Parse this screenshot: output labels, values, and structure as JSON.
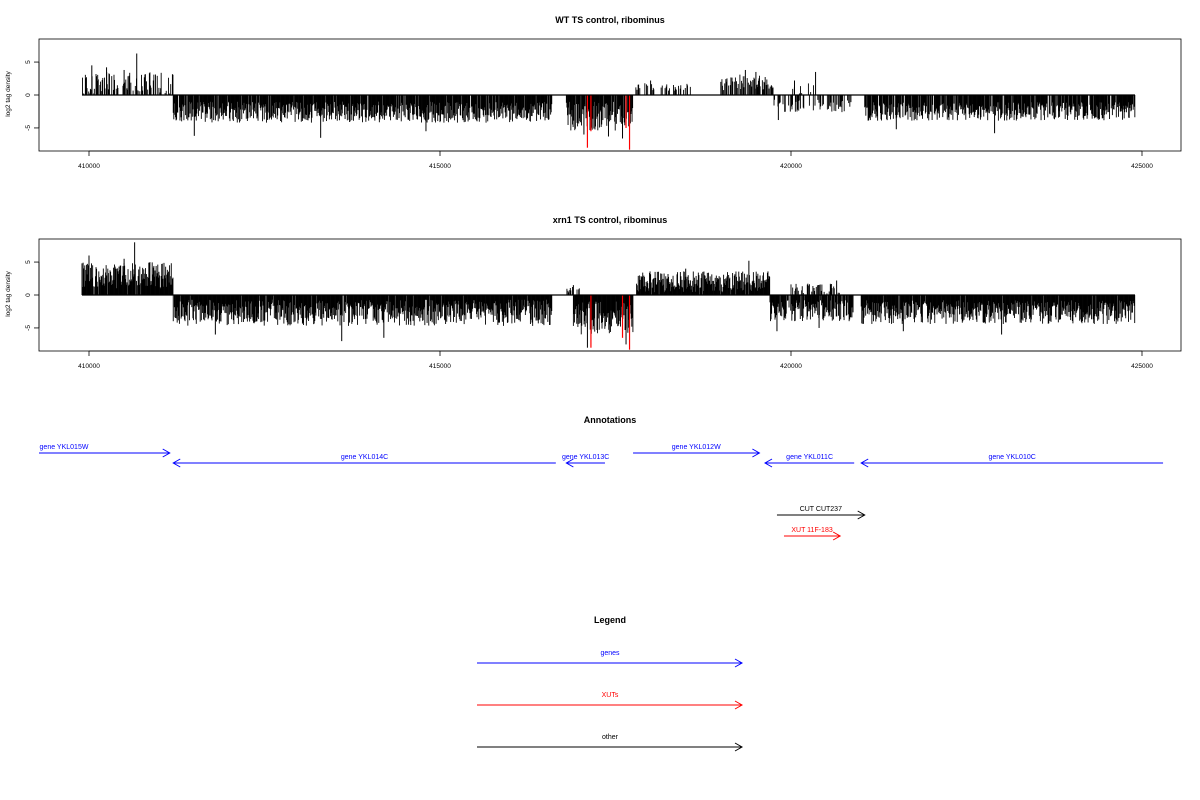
{
  "chart_data": [
    {
      "type": "bar",
      "title": "WT TS control, ribominus",
      "ylabel": "log2 tag density",
      "xlabel": "",
      "xlim": [
        409900,
        424900
      ],
      "ylim": [
        -8.5,
        8.5
      ],
      "x_ticks": [
        410000,
        415000,
        420000,
        425000
      ],
      "y_ticks": [
        5,
        0,
        -5
      ],
      "grid": false,
      "regions": [
        {
          "start": 409900,
          "end": 411200,
          "sign": 1,
          "mean": 1.8,
          "amp": 1.7,
          "density": 0.5,
          "peaks": [
            [
              410680,
              6.3
            ],
            [
              410040,
              4.5
            ],
            [
              410250,
              4.2
            ],
            [
              410500,
              3.8
            ]
          ]
        },
        {
          "start": 411200,
          "end": 416600,
          "sign": -1,
          "mean": 2.6,
          "amp": 1.6,
          "density": 0.9,
          "peaks": [
            [
              411500,
              6.2
            ],
            [
              413300,
              6.5
            ],
            [
              414800,
              5.5
            ]
          ]
        },
        {
          "start": 416800,
          "end": 417750,
          "sign": -1,
          "mean": 3.2,
          "amp": 2.2,
          "density": 0.9,
          "peaks": [
            [
              417050,
              6.0
            ],
            [
              417400,
              6.3
            ],
            [
              417600,
              6.6
            ]
          ]
        },
        {
          "start": 417750,
          "end": 418600,
          "sign": 1,
          "mean": 1.2,
          "amp": 0.6,
          "density": 0.2,
          "peaks": [
            [
              418000,
              2.2
            ]
          ]
        },
        {
          "start": 419000,
          "end": 419750,
          "sign": 1,
          "mean": 1.9,
          "amp": 1.2,
          "density": 0.65,
          "peaks": [
            [
              419350,
              3.8
            ],
            [
              419500,
              3.5
            ]
          ]
        },
        {
          "start": 419750,
          "end": 420900,
          "sign": -1,
          "mean": 1.6,
          "amp": 1.0,
          "density": 0.4,
          "peaks": [
            [
              419820,
              3.8
            ]
          ]
        },
        {
          "start": 420000,
          "end": 420400,
          "sign": 1,
          "mean": 1.0,
          "amp": 0.8,
          "density": 0.1,
          "peaks": [
            [
              420050,
              2.2
            ],
            [
              420350,
              3.5
            ]
          ]
        },
        {
          "start": 421050,
          "end": 424900,
          "sign": -1,
          "mean": 2.5,
          "amp": 1.4,
          "density": 0.85,
          "peaks": [
            [
              422900,
              5.8
            ],
            [
              421500,
              5.2
            ]
          ]
        }
      ],
      "red_lines": [
        [
          417100,
          -8.0
        ],
        [
          417150,
          -5.5
        ],
        [
          417700,
          -8.3
        ],
        [
          417650,
          -5.0
        ]
      ],
      "gaps": [
        [
          416600,
          416800
        ],
        [
          418600,
          419000
        ],
        [
          420900,
          421050
        ]
      ]
    },
    {
      "type": "bar",
      "title": "xrn1 TS control, ribominus",
      "ylabel": "log2 tag density",
      "xlabel": "",
      "xlim": [
        409900,
        424900
      ],
      "ylim": [
        -8.5,
        8.5
      ],
      "x_ticks": [
        410000,
        415000,
        420000,
        425000
      ],
      "y_ticks": [
        5,
        0,
        -5
      ],
      "grid": false,
      "regions": [
        {
          "start": 409900,
          "end": 411200,
          "sign": 1,
          "mean": 3.0,
          "amp": 2.0,
          "density": 0.95,
          "peaks": [
            [
              410000,
              6.0
            ],
            [
              410650,
              8.0
            ],
            [
              410500,
              5.5
            ]
          ]
        },
        {
          "start": 411200,
          "end": 416600,
          "sign": -1,
          "mean": 2.7,
          "amp": 2.0,
          "density": 0.97,
          "peaks": [
            [
              413600,
              7.0
            ],
            [
              411800,
              6.0
            ],
            [
              414200,
              6.5
            ]
          ]
        },
        {
          "start": 416800,
          "end": 417000,
          "sign": 1,
          "mean": 0.8,
          "amp": 0.5,
          "density": 0.5,
          "peaks": [
            [
              416900,
              1.5
            ]
          ]
        },
        {
          "start": 416900,
          "end": 417750,
          "sign": -1,
          "mean": 3.5,
          "amp": 2.5,
          "density": 0.97,
          "peaks": [
            [
              417100,
              8.0
            ],
            [
              417650,
              7.5
            ]
          ]
        },
        {
          "start": 417800,
          "end": 419700,
          "sign": 1,
          "mean": 2.0,
          "amp": 1.6,
          "density": 0.95,
          "peaks": [
            [
              419400,
              5.2
            ],
            [
              418500,
              4.0
            ]
          ]
        },
        {
          "start": 419700,
          "end": 420900,
          "sign": -1,
          "mean": 2.4,
          "amp": 1.6,
          "density": 0.85,
          "peaks": [
            [
              419800,
              5.5
            ],
            [
              420400,
              5.0
            ]
          ]
        },
        {
          "start": 420000,
          "end": 420700,
          "sign": 1,
          "mean": 0.9,
          "amp": 0.9,
          "density": 0.4,
          "peaks": [
            [
              420650,
              2.2
            ]
          ]
        },
        {
          "start": 421000,
          "end": 424900,
          "sign": -1,
          "mean": 2.6,
          "amp": 1.8,
          "density": 0.97,
          "peaks": [
            [
              421600,
              5.5
            ],
            [
              423000,
              6.0
            ]
          ]
        }
      ],
      "red_lines": [
        [
          417150,
          -8.0
        ],
        [
          417700,
          -8.3
        ],
        [
          417600,
          -6.5
        ]
      ],
      "gaps": [
        [
          416600,
          416800
        ],
        [
          420900,
          421000
        ]
      ]
    }
  ],
  "annotations": {
    "title": "Annotations",
    "features": [
      {
        "label": "gene YKL015W",
        "color": "#0000ff",
        "start": 409250,
        "end": 411150,
        "strand": "+",
        "row": 0
      },
      {
        "label": "gene YKL014C",
        "color": "#0000ff",
        "start": 411200,
        "end": 416650,
        "strand": "-",
        "row": 1
      },
      {
        "label": "gene YKL013C",
        "color": "#0000ff",
        "start": 416800,
        "end": 417350,
        "strand": "-",
        "row": 1
      },
      {
        "label": "gene YKL012W",
        "color": "#0000ff",
        "start": 417750,
        "end": 419550,
        "strand": "+",
        "row": 0
      },
      {
        "label": "gene YKL011C",
        "color": "#0000ff",
        "start": 419630,
        "end": 420900,
        "strand": "-",
        "row": 1
      },
      {
        "label": "gene YKL010C",
        "color": "#0000ff",
        "start": 421000,
        "end": 425300,
        "strand": "-",
        "row": 1
      },
      {
        "label": "CUT CUT237",
        "color": "#000000",
        "start": 419800,
        "end": 421050,
        "strand": "+",
        "row": 2
      },
      {
        "label": "XUT 11F-183",
        "color": "#ff0000",
        "start": 419900,
        "end": 420700,
        "strand": "+",
        "row": 3
      }
    ]
  },
  "legend": {
    "title": "Legend",
    "items": [
      {
        "label": "genes",
        "color": "#0000ff"
      },
      {
        "label": "XUTs",
        "color": "#ff0000"
      },
      {
        "label": "other",
        "color": "#000000"
      }
    ]
  }
}
